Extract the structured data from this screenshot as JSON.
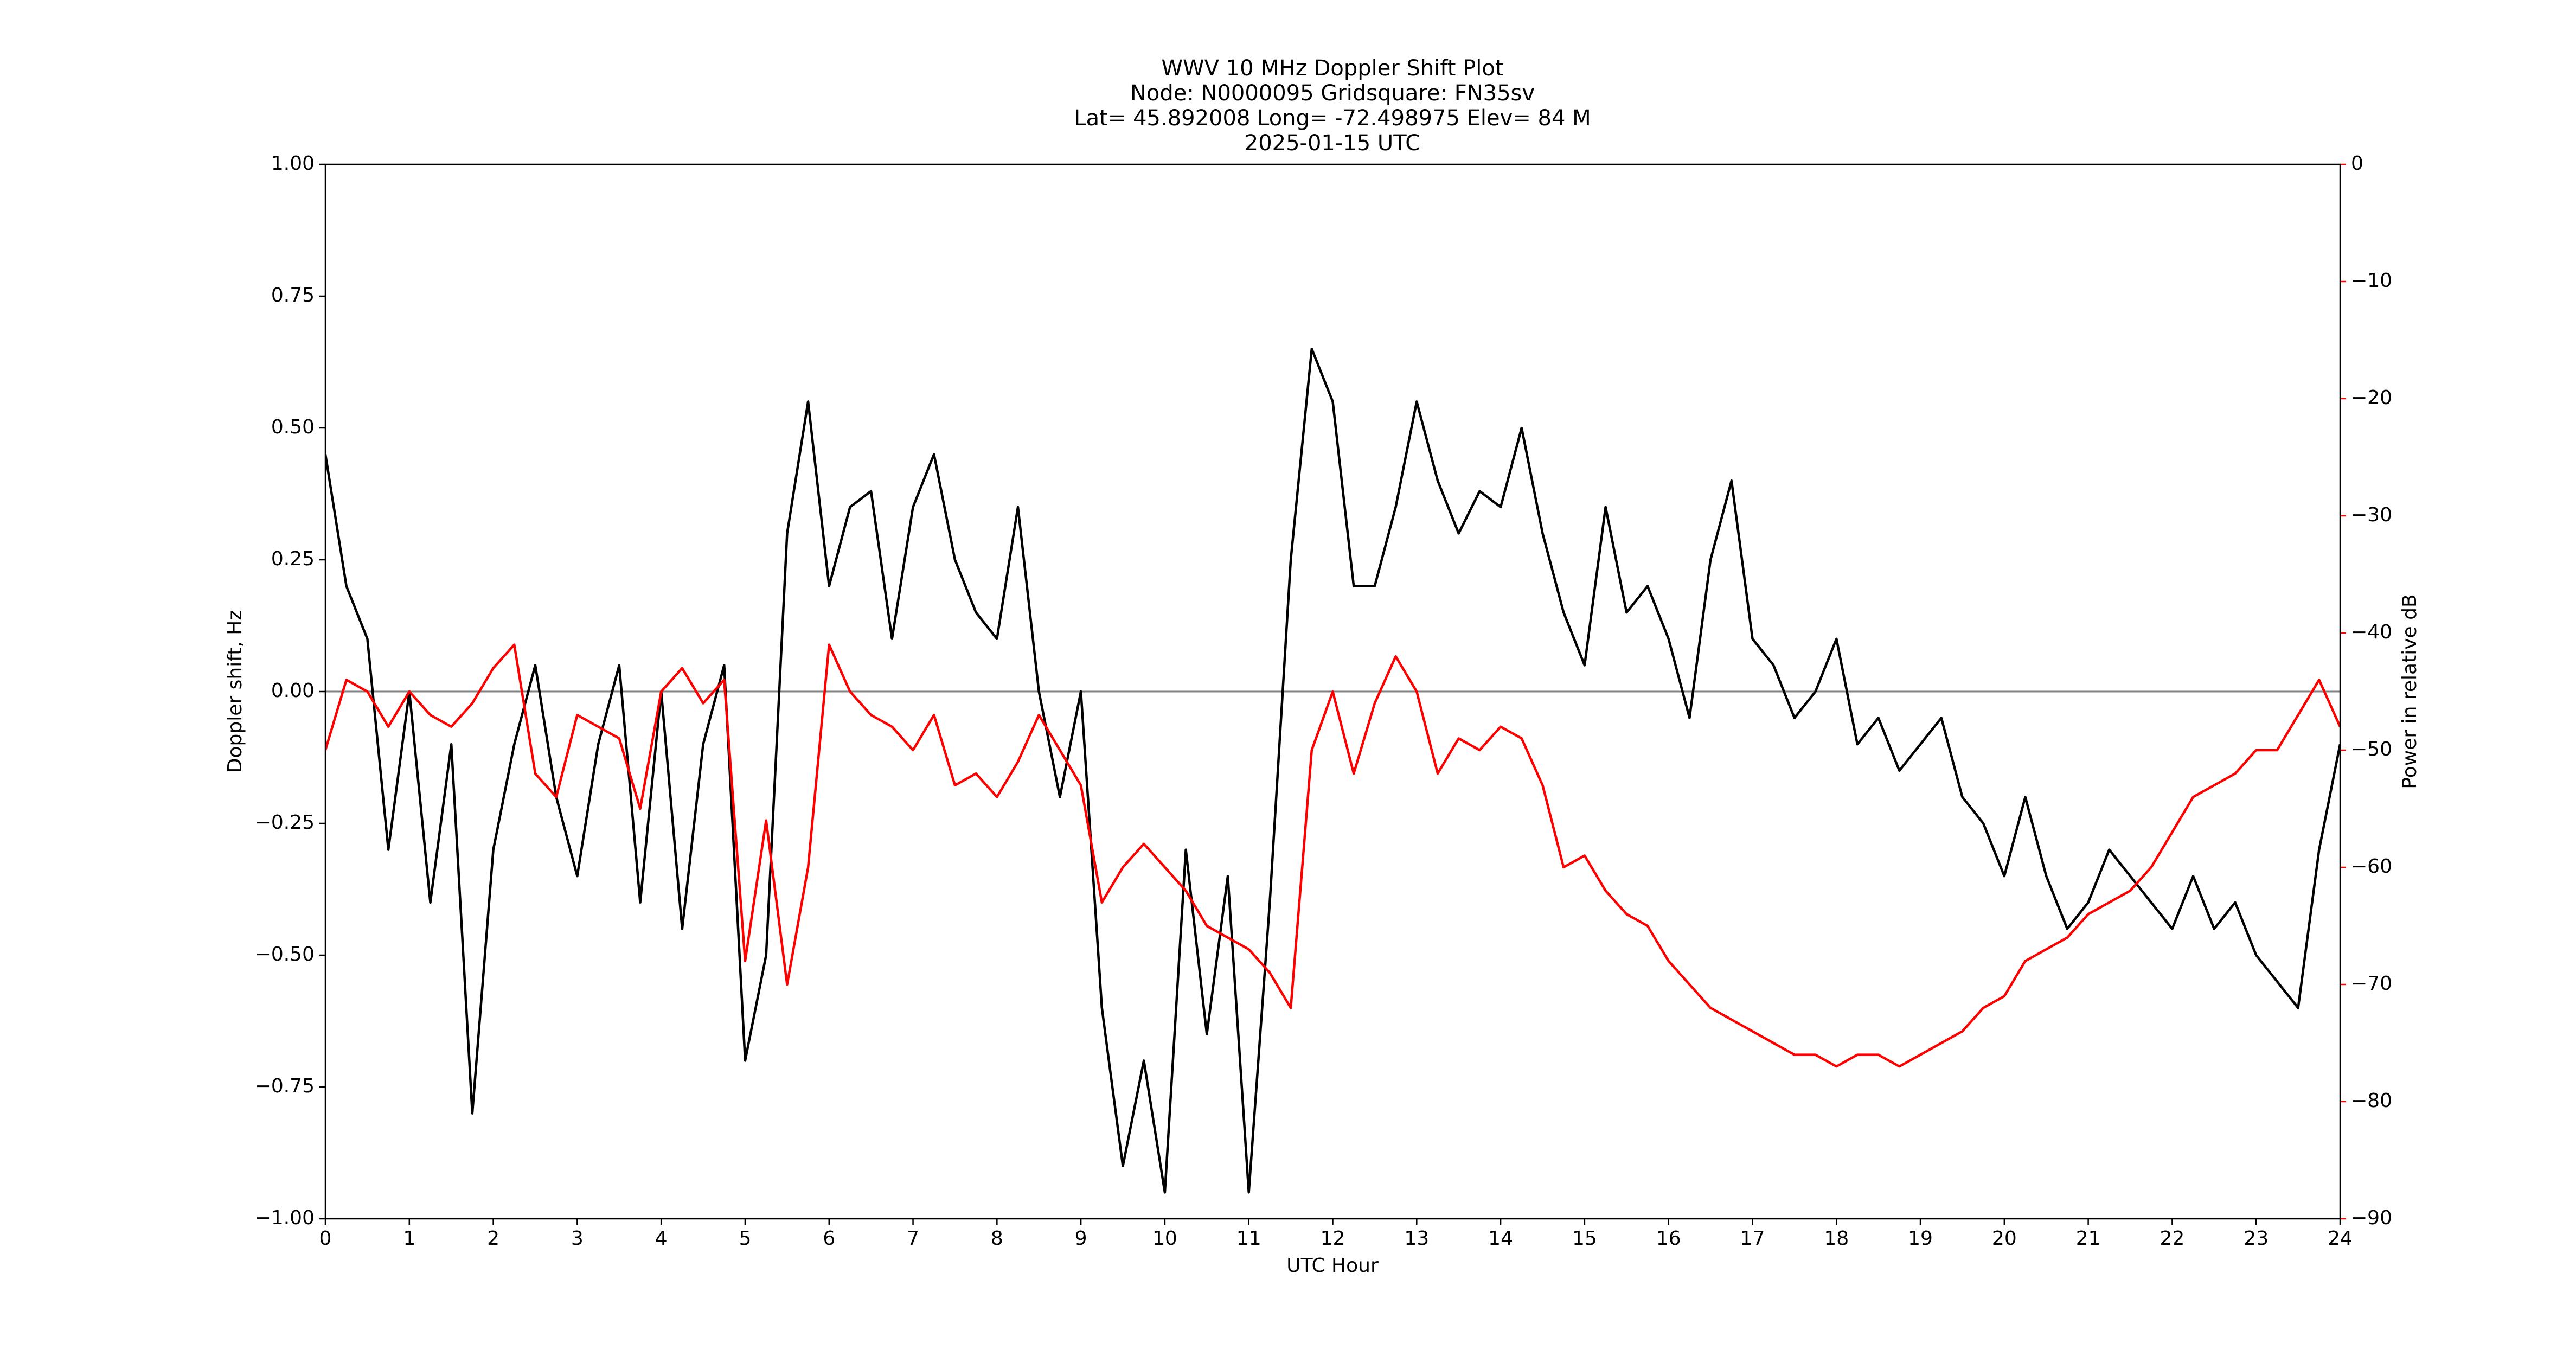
{
  "chart_data": {
    "type": "line",
    "title": [
      "WWV 10 MHz Doppler Shift Plot",
      "Node:  N0000095     Gridsquare:  FN35sv",
      "Lat= 45.892008    Long= -72.498975    Elev= 84 M",
      "2025-01-15  UTC"
    ],
    "xlabel": "UTC Hour",
    "ylabel": "Doppler shift, Hz",
    "y2label": "Power in relative dB",
    "x": [
      0,
      0.25,
      0.5,
      0.75,
      1,
      1.25,
      1.5,
      1.75,
      2,
      2.25,
      2.5,
      2.75,
      3,
      3.25,
      3.5,
      3.75,
      4,
      4.25,
      4.5,
      4.75,
      5,
      5.25,
      5.5,
      5.75,
      6,
      6.25,
      6.5,
      6.75,
      7,
      7.25,
      7.5,
      7.75,
      8,
      8.25,
      8.5,
      8.75,
      9,
      9.25,
      9.5,
      9.75,
      10,
      10.25,
      10.5,
      10.75,
      11,
      11.25,
      11.5,
      11.75,
      12,
      12.25,
      12.5,
      12.75,
      13,
      13.25,
      13.5,
      13.75,
      14,
      14.25,
      14.5,
      14.75,
      15,
      15.25,
      15.5,
      15.75,
      16,
      16.25,
      16.5,
      16.75,
      17,
      17.25,
      17.5,
      17.75,
      18,
      18.25,
      18.5,
      18.75,
      19,
      19.25,
      19.5,
      19.75,
      20,
      20.25,
      20.5,
      20.75,
      21,
      21.25,
      21.5,
      21.75,
      22,
      22.25,
      22.5,
      22.75,
      23,
      23.25,
      23.5,
      23.75,
      24
    ],
    "series": [
      {
        "name": "Doppler shift",
        "color": "#000000",
        "values": [
          0.45,
          0.2,
          0.1,
          -0.3,
          0.0,
          -0.4,
          -0.1,
          -0.8,
          -0.3,
          -0.1,
          0.05,
          -0.2,
          -0.35,
          -0.1,
          0.05,
          -0.4,
          0.0,
          -0.45,
          -0.1,
          0.05,
          -0.7,
          -0.5,
          0.3,
          0.55,
          0.2,
          0.35,
          0.38,
          0.1,
          0.35,
          0.45,
          0.25,
          0.15,
          0.1,
          0.35,
          0.0,
          -0.2,
          0.0,
          -0.6,
          -0.9,
          -0.7,
          -0.95,
          -0.3,
          -0.65,
          -0.35,
          -0.95,
          -0.4,
          0.25,
          0.65,
          0.55,
          0.2,
          0.2,
          0.35,
          0.55,
          0.4,
          0.3,
          0.38,
          0.35,
          0.5,
          0.3,
          0.15,
          0.05,
          0.35,
          0.15,
          0.2,
          0.1,
          -0.05,
          0.25,
          0.4,
          0.1,
          0.05,
          -0.05,
          0.0,
          0.1,
          -0.1,
          -0.05,
          -0.15,
          -0.1,
          -0.05,
          -0.2,
          -0.25,
          -0.35,
          -0.2,
          -0.35,
          -0.45,
          -0.4,
          -0.3,
          -0.35,
          -0.4,
          -0.45,
          -0.35,
          -0.45,
          -0.4,
          -0.5,
          -0.55,
          -0.6,
          -0.3,
          -0.1
        ]
      },
      {
        "name": "Power",
        "color": "#ff0000",
        "axis": "y2",
        "values": [
          -50,
          -44,
          -45,
          -48,
          -45,
          -47,
          -48,
          -46,
          -43,
          -41,
          -52,
          -54,
          -47,
          -48,
          -49,
          -55,
          -45,
          -43,
          -46,
          -44,
          -68,
          -56,
          -70,
          -60,
          -41,
          -45,
          -47,
          -48,
          -50,
          -47,
          -53,
          -52,
          -54,
          -51,
          -47,
          -50,
          -53,
          -63,
          -60,
          -58,
          -60,
          -62,
          -65,
          -66,
          -67,
          -69,
          -72,
          -50,
          -45,
          -52,
          -46,
          -42,
          -45,
          -52,
          -49,
          -50,
          -48,
          -49,
          -53,
          -60,
          -59,
          -62,
          -64,
          -65,
          -68,
          -70,
          -72,
          -73,
          -74,
          -75,
          -76,
          -76,
          -77,
          -76,
          -76,
          -77,
          -76,
          -75,
          -74,
          -72,
          -71,
          -68,
          -67,
          -66,
          -64,
          -63,
          -62,
          -60,
          -57,
          -54,
          -53,
          -52,
          -50,
          -50,
          -47,
          -44,
          -48
        ]
      }
    ],
    "xlim": [
      0,
      24
    ],
    "xticks": [
      0,
      1,
      2,
      3,
      4,
      5,
      6,
      7,
      8,
      9,
      10,
      11,
      12,
      13,
      14,
      15,
      16,
      17,
      18,
      19,
      20,
      21,
      22,
      23,
      24
    ],
    "ylim": [
      -1,
      1
    ],
    "yticks": [
      {
        "value": -1,
        "label": "−1.00"
      },
      {
        "value": -0.75,
        "label": "−0.75"
      },
      {
        "value": -0.5,
        "label": "−0.50"
      },
      {
        "value": -0.25,
        "label": "−0.25"
      },
      {
        "value": 0,
        "label": "0.00"
      },
      {
        "value": 0.25,
        "label": "0.25"
      },
      {
        "value": 0.5,
        "label": "0.50"
      },
      {
        "value": 0.75,
        "label": "0.75"
      },
      {
        "value": 1,
        "label": "1.00"
      }
    ],
    "y2lim": [
      -90,
      0
    ],
    "y2ticks": [
      {
        "value": -90,
        "label": "−90"
      },
      {
        "value": -80,
        "label": "−80"
      },
      {
        "value": -70,
        "label": "−70"
      },
      {
        "value": -60,
        "label": "−60"
      },
      {
        "value": -50,
        "label": "−50"
      },
      {
        "value": -40,
        "label": "−40"
      },
      {
        "value": -30,
        "label": "−30"
      },
      {
        "value": -20,
        "label": "−20"
      },
      {
        "value": -10,
        "label": "−10"
      },
      0
    ],
    "y2color": "#ff0000",
    "hline": 0,
    "hline_color": "#808080"
  }
}
